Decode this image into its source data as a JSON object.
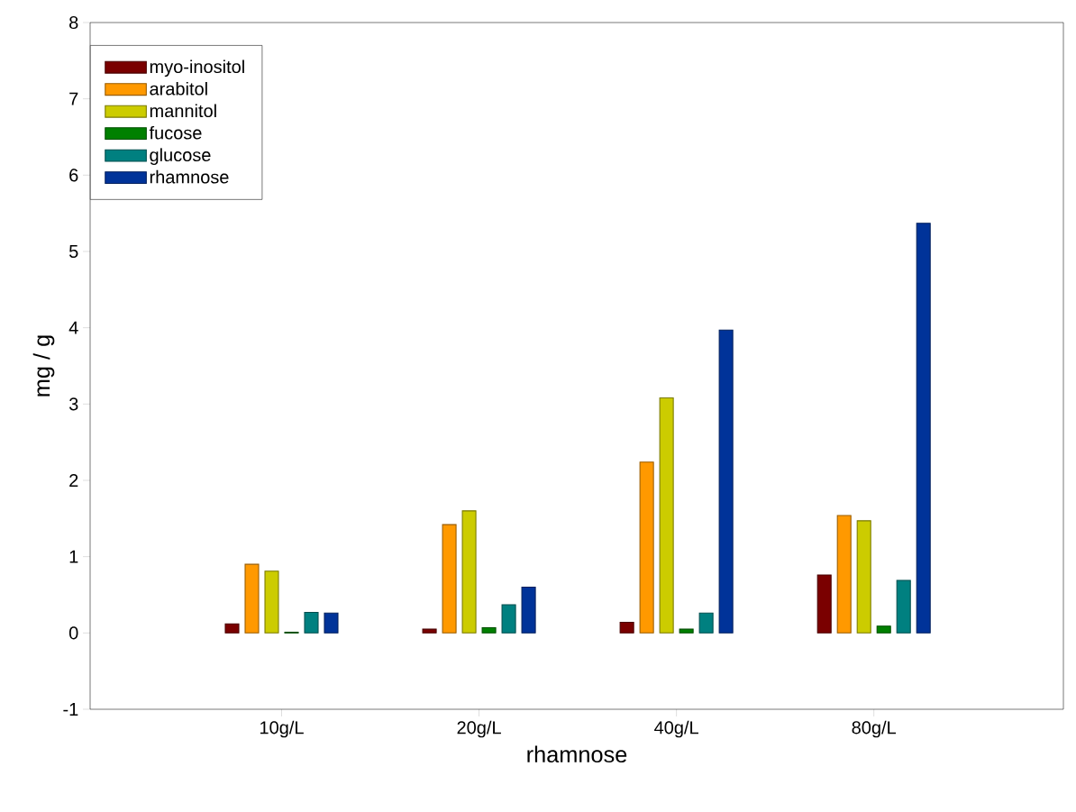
{
  "chart_data": {
    "type": "bar",
    "xlabel": "rhamnose",
    "ylabel": "mg / g",
    "categories": [
      "10g/L",
      "20g/L",
      "40g/L",
      "80g/L"
    ],
    "series": [
      {
        "name": "myo-inositol",
        "color": "#7a0000",
        "values": [
          0.12,
          0.05,
          0.14,
          0.76
        ]
      },
      {
        "name": "arabitol",
        "color": "#ff9900",
        "values": [
          0.9,
          1.42,
          2.24,
          1.54
        ]
      },
      {
        "name": "mannitol",
        "color": "#cccc00",
        "values": [
          0.81,
          1.6,
          3.08,
          1.47
        ]
      },
      {
        "name": "fucose",
        "color": "#008000",
        "values": [
          0.01,
          0.07,
          0.05,
          0.09
        ]
      },
      {
        "name": "glucose",
        "color": "#008080",
        "values": [
          0.27,
          0.37,
          0.26,
          0.69
        ]
      },
      {
        "name": "rhamnose",
        "color": "#003399",
        "values": [
          0.26,
          0.6,
          3.97,
          5.37
        ]
      }
    ],
    "ylim": [
      -1,
      8
    ],
    "yticks": [
      -1,
      0,
      1,
      2,
      3,
      4,
      5,
      6,
      7,
      8
    ],
    "grid": false,
    "legend": "top left"
  }
}
